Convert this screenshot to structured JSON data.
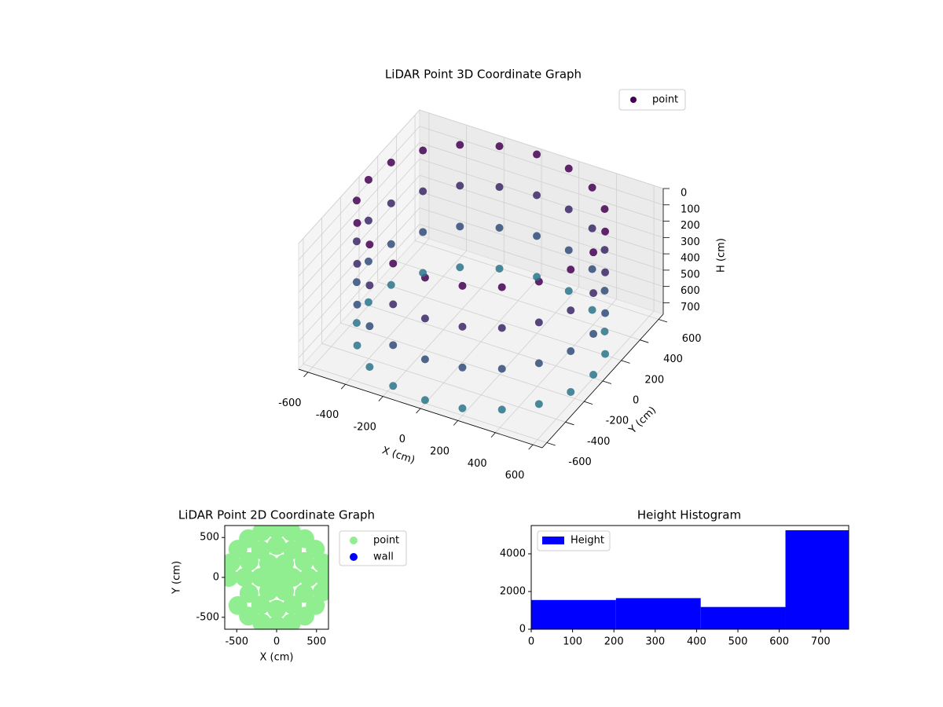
{
  "chart_data": [
    {
      "type": "scatter3d",
      "title": "LiDAR Point 3D Coordinate Graph",
      "xlabel": "X (cm)",
      "ylabel": "Y (cm)",
      "zlabel": "H (cm)",
      "xlim": [
        -650,
        650
      ],
      "ylim": [
        -650,
        650
      ],
      "zlim": [
        0,
        770
      ],
      "z_inverted": true,
      "xticks": [
        -600,
        -400,
        -200,
        0,
        200,
        400,
        600
      ],
      "yticks": [
        -600,
        -400,
        -200,
        0,
        200,
        400,
        600
      ],
      "zticks": [
        0,
        100,
        200,
        300,
        400,
        500,
        600,
        700
      ],
      "grid": true,
      "legend": "upper right",
      "colormap": [
        "#440154",
        "#2a788e"
      ],
      "series": [
        {
          "name": "point",
          "color": "#440154",
          "x": [
            600,
            571,
            485,
            353,
            185,
            0,
            -185,
            -353,
            -485,
            -571,
            -600,
            -571,
            -485,
            -353,
            -185,
            0,
            185,
            353,
            485,
            571,
            600,
            571,
            485,
            353,
            185,
            0,
            -185,
            -353,
            -485,
            -571,
            -600,
            -571,
            -485,
            -353,
            -185,
            0,
            185,
            353,
            485,
            571,
            600,
            571,
            485,
            353,
            185,
            0,
            -185,
            -353,
            -485,
            -571,
            -600,
            -571,
            -485,
            -353,
            -185,
            0,
            185,
            353,
            485,
            571,
            600,
            571,
            485,
            353,
            185,
            0,
            -185,
            -353,
            -485,
            -571,
            -600,
            -571,
            -485,
            -353,
            -185,
            0,
            185,
            353,
            485,
            571
          ],
          "y": [
            0,
            185,
            353,
            485,
            571,
            600,
            571,
            485,
            353,
            185,
            0,
            -185,
            -353,
            -485,
            -571,
            -600,
            -571,
            -485,
            -353,
            -185,
            0,
            185,
            353,
            485,
            571,
            600,
            571,
            485,
            353,
            185,
            0,
            -185,
            -353,
            -485,
            -571,
            -600,
            -571,
            -485,
            -353,
            -185,
            0,
            185,
            353,
            485,
            571,
            600,
            571,
            485,
            353,
            185,
            0,
            -185,
            -353,
            -485,
            -571,
            -600,
            -571,
            -485,
            -353,
            -185,
            0,
            185,
            353,
            485,
            571,
            600,
            571,
            485,
            353,
            185,
            0,
            -185,
            -353,
            -485,
            -571,
            -600,
            -571,
            -485,
            -353,
            -185
          ],
          "h": [
            0,
            0,
            0,
            0,
            0,
            0,
            0,
            0,
            0,
            0,
            0,
            0,
            0,
            0,
            0,
            0,
            0,
            0,
            0,
            0,
            250,
            250,
            250,
            250,
            250,
            250,
            250,
            250,
            250,
            250,
            250,
            250,
            250,
            250,
            250,
            250,
            250,
            250,
            250,
            250,
            500,
            500,
            500,
            500,
            500,
            500,
            500,
            500,
            500,
            500,
            500,
            500,
            500,
            500,
            500,
            500,
            500,
            500,
            500,
            500,
            750,
            750,
            750,
            750,
            750,
            750,
            750,
            750,
            750,
            750,
            750,
            750,
            750,
            750,
            750,
            750,
            750,
            750,
            750,
            750
          ]
        }
      ]
    },
    {
      "type": "scatter",
      "title": "LiDAR Point 2D Coordinate Graph",
      "xlabel": "X (cm)",
      "ylabel": "Y (cm)",
      "xlim": [
        -650,
        650
      ],
      "ylim": [
        -650,
        650
      ],
      "xticks": [
        -500,
        0,
        500
      ],
      "yticks": [
        -500,
        0,
        500
      ],
      "legend": "outside right",
      "series": [
        {
          "name": "point",
          "color": "#90ee90",
          "x": [
            0,
            200,
            100,
            -100,
            -200,
            -100,
            100,
            400,
            346,
            200,
            0,
            -200,
            -346,
            -400,
            -346,
            -200,
            0,
            200,
            346,
            600,
            571,
            485,
            353,
            185,
            0,
            -185,
            -353,
            -485,
            -571,
            -600,
            -485,
            -353,
            -185,
            0,
            185,
            353,
            485,
            571
          ],
          "y": [
            0,
            0,
            173,
            173,
            0,
            -173,
            -173,
            0,
            200,
            346,
            400,
            346,
            200,
            0,
            -200,
            -346,
            -400,
            -346,
            -200,
            0,
            185,
            353,
            485,
            571,
            600,
            571,
            485,
            353,
            185,
            0,
            -353,
            -485,
            -571,
            -600,
            -571,
            -485,
            -353,
            -185
          ]
        },
        {
          "name": "wall",
          "color": "#0000ff",
          "x": [],
          "y": []
        }
      ]
    },
    {
      "type": "histogram",
      "title": "Height Histogram",
      "bins": [
        0,
        205,
        410,
        615,
        768
      ],
      "values": [
        1550,
        1650,
        1180,
        5250
      ],
      "xlim": [
        0,
        768
      ],
      "ylim": [
        0,
        5500
      ],
      "xticks": [
        0,
        100,
        200,
        300,
        400,
        500,
        600,
        700
      ],
      "yticks": [
        0,
        2000,
        4000
      ],
      "legend": "upper left",
      "series_name": "Height",
      "color": "#0000ff"
    }
  ]
}
